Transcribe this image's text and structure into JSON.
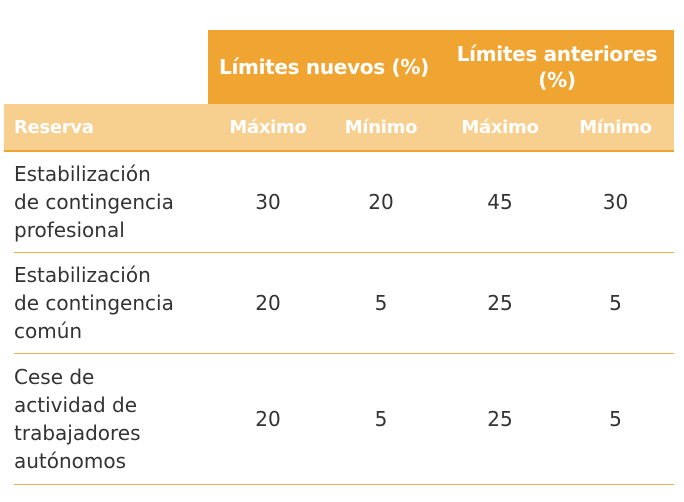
{
  "header": {
    "group_new": "Límites nuevos (%)",
    "group_old": "Límites anteriores (%)",
    "col_reserva": "Reserva",
    "col_max_new": "Máximo",
    "col_min_new": "Mínimo",
    "col_max_old": "Máximo",
    "col_min_old": "Mínimo"
  },
  "rows": [
    {
      "reserva": "Estabilización\nde contingencia\nprofesional",
      "max_new": "30",
      "min_new": "20",
      "max_old": "45",
      "min_old": "30"
    },
    {
      "reserva": "Estabilización\nde contingencia\ncomún",
      "max_new": "20",
      "min_new": "5",
      "max_old": "25",
      "min_old": "5"
    },
    {
      "reserva": "Cese de\nactividad de\ntrabajadores\nautónomos",
      "max_new": "20",
      "min_new": "5",
      "max_old": "25",
      "min_old": "5"
    }
  ],
  "colors": {
    "header_dark": "#f0a533",
    "header_light": "#f7cf8e",
    "row_border": "#f0b04c",
    "text": "#333333"
  }
}
